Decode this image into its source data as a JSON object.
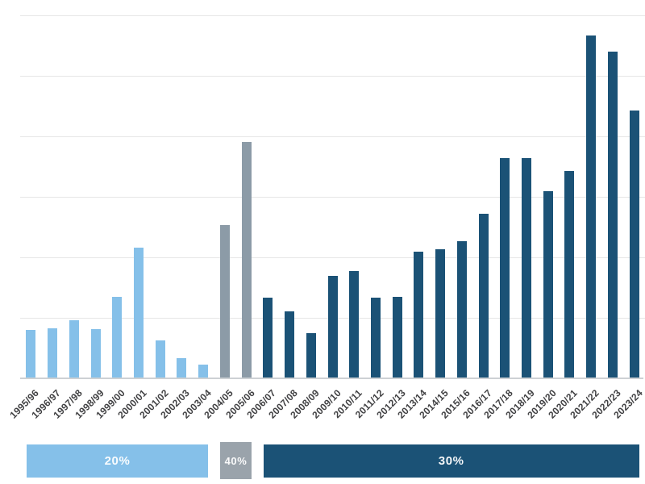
{
  "chart_data": {
    "type": "bar",
    "title": "",
    "xlabel": "",
    "ylabel": "",
    "categories": [
      "1995/96",
      "1996/97",
      "1997/98",
      "1998/99",
      "1999/00",
      "2000/01",
      "2001/02",
      "2002/03",
      "2003/04",
      "2004/05",
      "2005/06",
      "2006/07",
      "2007/08",
      "2008/09",
      "2009/10",
      "2010/11",
      "2011/12",
      "2012/13",
      "2013/14",
      "2014/15",
      "2015/16",
      "2016/17",
      "2017/18",
      "2018/19",
      "2019/20",
      "2020/21",
      "2021/22",
      "2022/23",
      "2023/24"
    ],
    "values": [
      0.8,
      0.83,
      0.96,
      0.82,
      1.34,
      2.16,
      0.62,
      0.33,
      0.23,
      2.53,
      3.9,
      1.33,
      1.1,
      0.75,
      1.69,
      1.77,
      1.33,
      1.35,
      2.09,
      2.13,
      2.27,
      2.72,
      3.64,
      3.64,
      3.09,
      3.42,
      5.67,
      5.4,
      4.42
    ],
    "bar_groups": [
      0,
      0,
      0,
      0,
      0,
      0,
      0,
      0,
      0,
      1,
      1,
      2,
      2,
      2,
      2,
      2,
      2,
      2,
      2,
      2,
      2,
      2,
      2,
      2,
      2,
      2,
      2,
      2,
      2
    ],
    "groups": [
      {
        "period": "1995/96-2003/04",
        "label": "20%",
        "color": "#85C0E9",
        "legend_color": "#85C0E9",
        "emphasized": false
      },
      {
        "period": "2004/05-2005/06",
        "label": "40%",
        "color": "#8C9BA7",
        "legend_color": "#9AA3AB",
        "emphasized": true
      },
      {
        "period": "2006/07-2023/24",
        "label": "30%",
        "color": "#1B5276",
        "legend_color": "#1B5276",
        "emphasized": false
      }
    ],
    "ylim": [
      0,
      6
    ],
    "y_tick_labels": [],
    "y_axis_note": "no numeric y-axis labels shown; values estimated in gridline units (one horizontal gridline interval = 1 unit, 6 gridlines above baseline)",
    "grid": true,
    "legend_position": "bottom"
  },
  "legend": {
    "segments": [
      {
        "label": "20%"
      },
      {
        "label": "40%"
      },
      {
        "label": "30%"
      }
    ]
  },
  "colors": {
    "background": "#FFFFFF",
    "gridline": "#E7E7E7",
    "axis_line": "#CDD1D4",
    "tick_label_text": "#414143",
    "legend_text": "#FFFFFF",
    "light_blue": "#85C0E9",
    "gray": "#8C9BA7",
    "dark_blue": "#1B5276"
  }
}
